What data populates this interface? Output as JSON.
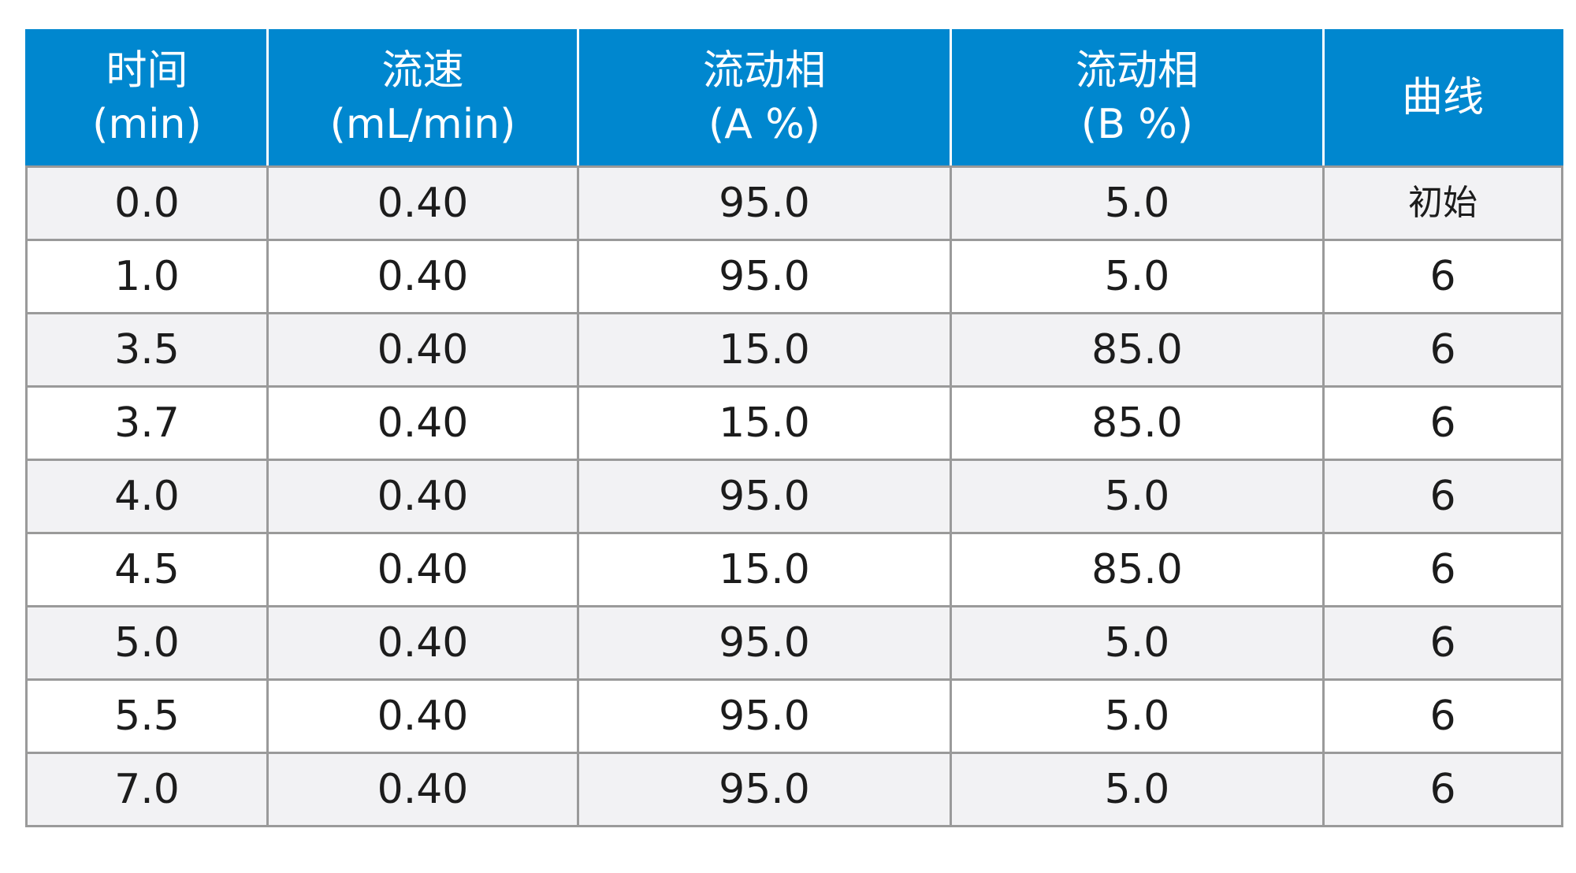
{
  "table": {
    "headers": [
      {
        "line1": "时间",
        "line2": "(min)"
      },
      {
        "line1": "流速",
        "line2": "(mL/min)"
      },
      {
        "line1": "流动相",
        "line2": "(A %)"
      },
      {
        "line1": "流动相",
        "line2": "(B %)"
      },
      {
        "line1": "曲线",
        "line2": ""
      }
    ],
    "rows": [
      [
        "0.0",
        "0.40",
        "95.0",
        "5.0",
        "初始"
      ],
      [
        "1.0",
        "0.40",
        "95.0",
        "5.0",
        "6"
      ],
      [
        "3.5",
        "0.40",
        "15.0",
        "85.0",
        "6"
      ],
      [
        "3.7",
        "0.40",
        "15.0",
        "85.0",
        "6"
      ],
      [
        "4.0",
        "0.40",
        "95.0",
        "5.0",
        "6"
      ],
      [
        "4.5",
        "0.40",
        "15.0",
        "85.0",
        "6"
      ],
      [
        "5.0",
        "0.40",
        "95.0",
        "5.0",
        "6"
      ],
      [
        "5.5",
        "0.40",
        "95.0",
        "5.0",
        "6"
      ],
      [
        "7.0",
        "0.40",
        "95.0",
        "5.0",
        "6"
      ]
    ]
  },
  "colors": {
    "header_bg": "#0087cf",
    "header_text": "#ffffff",
    "row_alt_bg": "#f2f2f4",
    "grid_line": "#9a9a9a"
  }
}
